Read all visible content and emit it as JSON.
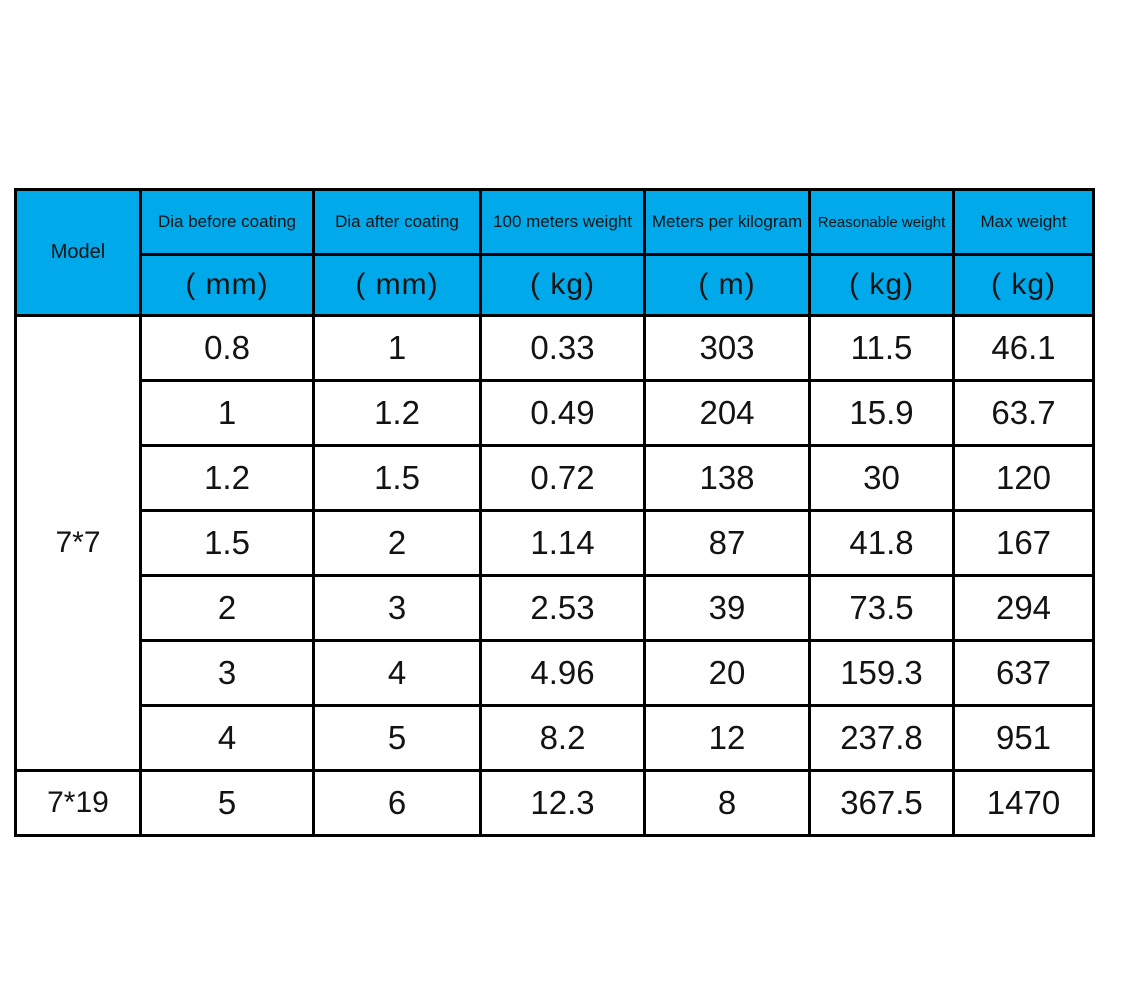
{
  "table": {
    "columns": [
      {
        "label": "Model",
        "unit": ""
      },
      {
        "label": "Dia before coating",
        "unit": "( mm)"
      },
      {
        "label": "Dia after coating",
        "unit": "( mm)"
      },
      {
        "label": "100 meters weight",
        "unit": "( kg)"
      },
      {
        "label": "Meters per kilogram",
        "unit": "( m)"
      },
      {
        "label": "Reasonable weight",
        "unit": "( kg)"
      },
      {
        "label": "Max weight",
        "unit": "( kg)"
      }
    ],
    "groups": [
      {
        "model": "7*7",
        "rows": [
          [
            "0.8",
            "1",
            "0.33",
            "303",
            "11.5",
            "46.1"
          ],
          [
            "1",
            "1.2",
            "0.49",
            "204",
            "15.9",
            "63.7"
          ],
          [
            "1.2",
            "1.5",
            "0.72",
            "138",
            "30",
            "120"
          ],
          [
            "1.5",
            "2",
            "1.14",
            "87",
            "41.8",
            "167"
          ],
          [
            "2",
            "3",
            "2.53",
            "39",
            "73.5",
            "294"
          ],
          [
            "3",
            "4",
            "4.96",
            "20",
            "159.3",
            "637"
          ],
          [
            "4",
            "5",
            "8.2",
            "12",
            "237.8",
            "951"
          ]
        ]
      },
      {
        "model": "7*19",
        "rows": [
          [
            "5",
            "6",
            "12.3",
            "8",
            "367.5",
            "1470"
          ]
        ]
      }
    ],
    "colors": {
      "header_bg": "#00A9EA",
      "border": "#000000",
      "text": "#131313",
      "row_bg": "#ffffff"
    }
  },
  "chart_data": {
    "type": "table",
    "title": "",
    "columns": [
      "Model",
      "Dia before coating ( mm)",
      "Dia after coating ( mm)",
      "100 meters weight ( kg)",
      "Meters per kilogram ( m)",
      "Reasonable weight ( kg)",
      "Max weight ( kg)"
    ],
    "rows": [
      [
        "7*7",
        0.8,
        1,
        0.33,
        303,
        11.5,
        46.1
      ],
      [
        "7*7",
        1,
        1.2,
        0.49,
        204,
        15.9,
        63.7
      ],
      [
        "7*7",
        1.2,
        1.5,
        0.72,
        138,
        30,
        120
      ],
      [
        "7*7",
        1.5,
        2,
        1.14,
        87,
        41.8,
        167
      ],
      [
        "7*7",
        2,
        3,
        2.53,
        39,
        73.5,
        294
      ],
      [
        "7*7",
        3,
        4,
        4.96,
        20,
        159.3,
        637
      ],
      [
        "7*7",
        4,
        5,
        8.2,
        12,
        237.8,
        951
      ],
      [
        "7*19",
        5,
        6,
        12.3,
        8,
        367.5,
        1470
      ]
    ],
    "layout_hints": {
      "header_rows": 2,
      "model_column_rowspans": {
        "7*7": 7,
        "7*19": 1
      },
      "header_bg": "#00A9EA",
      "grid": "black 3px solid"
    }
  }
}
